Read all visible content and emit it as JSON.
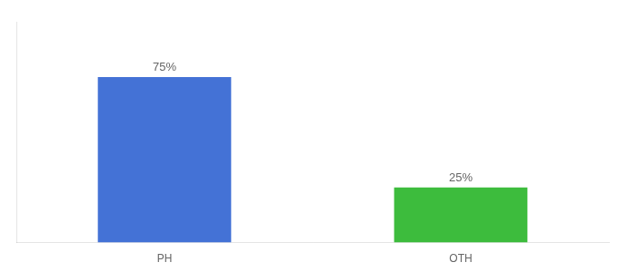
{
  "chart_data": {
    "type": "bar",
    "categories": [
      "PH",
      "OTH"
    ],
    "values": [
      75,
      25
    ],
    "value_labels": [
      "75%",
      "25%"
    ],
    "colors": [
      "#4472d6",
      "#3dbc3d"
    ],
    "ylim": [
      0,
      100
    ],
    "data_labels": true,
    "tick_labels": "x",
    "grid": false
  }
}
